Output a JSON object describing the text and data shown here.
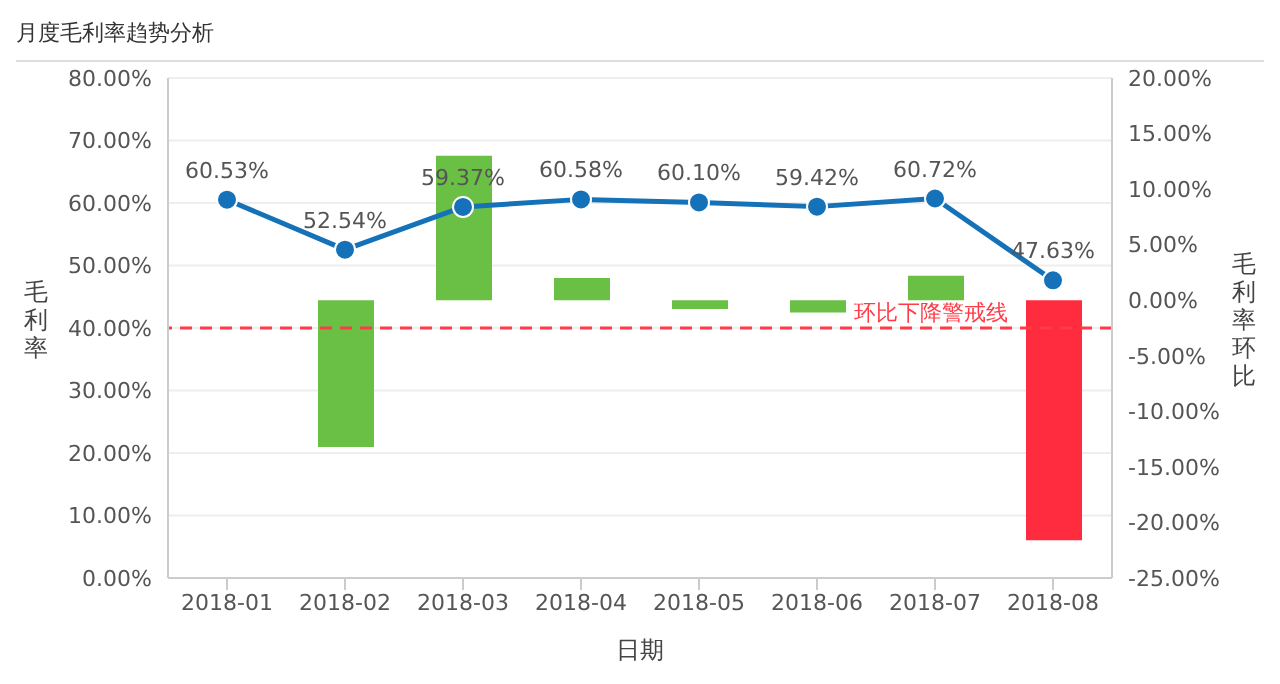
{
  "chart_data": {
    "type": "bar",
    "title": "月度毛利率趋势分析",
    "xlabel": "日期",
    "ylabel": "毛利率",
    "y2label": "毛利率环比",
    "categories": [
      "2018-01",
      "2018-02",
      "2018-03",
      "2018-04",
      "2018-05",
      "2018-06",
      "2018-07",
      "2018-08"
    ],
    "series": [
      {
        "axis": "y2",
        "color": "#6abf45",
        "colors": [
          "#6abf45",
          "#6abf45",
          "#6abf45",
          "#6abf45",
          "#6abf45",
          "#6abf45",
          "#6abf45",
          "#ff2b3f"
        ],
        "values": [
          null,
          -13.2,
          13.0,
          2.0,
          -0.8,
          -1.1,
          2.2,
          -21.6
        ]
      },
      {
        "type": "line",
        "axis": "y",
        "color": "#1572b8",
        "marker": "circle",
        "values": [
          60.53,
          52.54,
          59.37,
          60.58,
          60.1,
          59.42,
          60.72,
          47.63
        ],
        "value_labels": [
          "60.53%",
          "52.54%",
          "59.37%",
          "60.58%",
          "60.10%",
          "59.42%",
          "60.72%",
          "47.63%"
        ]
      }
    ],
    "ylim": [
      0,
      80
    ],
    "yticks": [
      {
        "value": 0,
        "label": "0.00%"
      },
      {
        "value": 10,
        "label": "10.00%"
      },
      {
        "value": 20,
        "label": "20.00%"
      },
      {
        "value": 30,
        "label": "30.00%"
      },
      {
        "value": 40,
        "label": "40.00%"
      },
      {
        "value": 50,
        "label": "50.00%"
      },
      {
        "value": 60,
        "label": "60.00%"
      },
      {
        "value": 70,
        "label": "70.00%"
      },
      {
        "value": 80,
        "label": "80.00%"
      }
    ],
    "y2lim": [
      -25,
      20
    ],
    "y2ticks": [
      {
        "value": -25,
        "label": "-25.00%"
      },
      {
        "value": -20,
        "label": "-20.00%"
      },
      {
        "value": -15,
        "label": "-15.00%"
      },
      {
        "value": -10,
        "label": "-10.00%"
      },
      {
        "value": -5,
        "label": "-5.00%"
      },
      {
        "value": 0,
        "label": "0.00%"
      },
      {
        "value": 5,
        "label": "5.00%"
      },
      {
        "value": 10,
        "label": "10.00%"
      },
      {
        "value": 15,
        "label": "15.00%"
      },
      {
        "value": 20,
        "label": "20.00%"
      }
    ],
    "ref_lines": [
      {
        "axis": "y2",
        "value": -2.5,
        "label": "环比下降警戒线",
        "color": "#ff3b47",
        "line_style": "dashed"
      }
    ],
    "grid": "y"
  }
}
